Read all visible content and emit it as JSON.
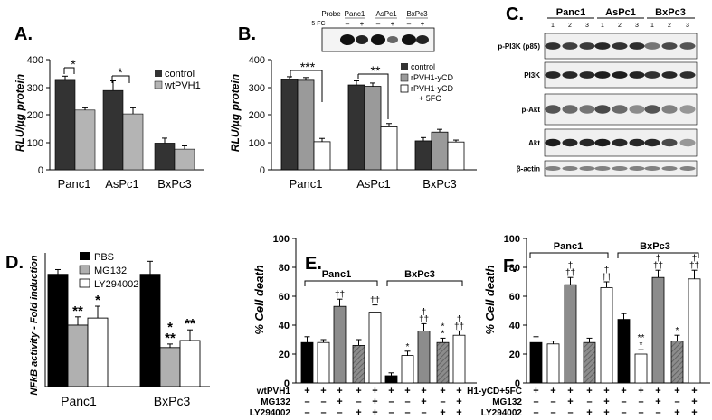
{
  "chart_data": [
    {
      "panel": "A.",
      "type": "bar",
      "ylabel": "RLU/µg protein",
      "ylim": [
        0,
        400
      ],
      "yticks": [
        "0",
        "100",
        "200",
        "300",
        "400"
      ],
      "categories": [
        "Panc1",
        "AsPc1",
        "BxPc3"
      ],
      "series": [
        {
          "name": "control",
          "color": "#333333",
          "values": [
            325,
            288,
            97
          ],
          "err": [
            15,
            35,
            18
          ]
        },
        {
          "name": "wtPVH1",
          "color": "#b4b4b4",
          "values": [
            217,
            203,
            75
          ],
          "err": [
            8,
            22,
            12
          ]
        }
      ],
      "significance": [
        "*",
        "*"
      ]
    },
    {
      "panel": "B.",
      "type": "bar",
      "ylabel": "RLU/µg protein",
      "ylim": [
        0,
        400
      ],
      "yticks": [
        "0",
        "100",
        "200",
        "300",
        "400"
      ],
      "categories": [
        "Panc1",
        "AsPc1",
        "BxPc3"
      ],
      "series": [
        {
          "name": "control",
          "color": "#333333",
          "values": [
            328,
            308,
            105
          ],
          "err": [
            10,
            15,
            12
          ]
        },
        {
          "name": "rPVH1-yCD",
          "color": "#9a9a9a",
          "values": [
            325,
            303,
            137
          ],
          "err": [
            10,
            12,
            10
          ]
        },
        {
          "name": "rPVH1-yCD + 5FC",
          "color": "#ffffff",
          "values": [
            102,
            156,
            101
          ],
          "err": [
            12,
            12,
            7
          ]
        }
      ],
      "significance": [
        "***",
        "**"
      ],
      "blot": {
        "row_label": "5 FC",
        "col_label": "Probe",
        "groups": [
          "Panc1",
          "AsPc1",
          "BxPc3"
        ],
        "lane_marks": [
          "–",
          "+",
          "–",
          "+",
          "–",
          "+"
        ]
      }
    },
    {
      "panel": "C.",
      "type": "table",
      "groups": [
        "Panc1",
        "AsPc1",
        "BxPc3"
      ],
      "lanes": [
        "1",
        "2",
        "3",
        "1",
        "2",
        "3",
        "1",
        "2",
        "3"
      ],
      "rows": [
        "p-PI3K (p85)",
        "PI3K",
        "p-Akt",
        "Akt",
        "β-actin"
      ]
    },
    {
      "panel": "D.",
      "type": "bar",
      "ylabel": "NFkB activity - Fold induction",
      "ylim": [
        0,
        1.2
      ],
      "categories": [
        "Panc1",
        "BxPc3"
      ],
      "series": [
        {
          "name": "PBS",
          "color": "#000000",
          "values": [
            0.95,
            0.95
          ],
          "err": [
            0.04,
            0.11
          ]
        },
        {
          "name": "MG132",
          "color": "#b0b0b0",
          "values": [
            0.52,
            0.33
          ],
          "err": [
            0.07,
            0.03
          ]
        },
        {
          "name": "LY294002",
          "color": "#ffffff",
          "values": [
            0.58,
            0.39
          ],
          "err": [
            0.1,
            0.09
          ]
        }
      ],
      "significance": [
        [
          "",
          "**",
          "*"
        ],
        [
          "",
          "**",
          "**"
        ]
      ],
      "significance_extra": [
        [
          "",
          "",
          ""
        ],
        [
          "",
          "*",
          ""
        ]
      ]
    },
    {
      "panel": "E.",
      "type": "bar",
      "ylabel": "% Cell death",
      "ylim": [
        0,
        100
      ],
      "yticks": [
        "0",
        "20",
        "40",
        "60",
        "80",
        "100"
      ],
      "groups": [
        "Panc1",
        "BxPc3"
      ],
      "values": [
        [
          28,
          28,
          53,
          26,
          49
        ],
        [
          5,
          19,
          36,
          28,
          33
        ]
      ],
      "err": [
        [
          4,
          2,
          5,
          4,
          5
        ],
        [
          2,
          3,
          5,
          3,
          3
        ]
      ],
      "bar_styles": [
        "black",
        "white",
        "gray",
        "hatch",
        "white"
      ],
      "marks": [
        [
          "",
          "",
          "††",
          "",
          "††"
        ],
        [
          "",
          "*",
          "†\n††",
          "*\n*",
          "†\n††"
        ]
      ],
      "rows": [
        {
          "label": "wtPVH1",
          "signs": [
            [
              "+",
              "+",
              "+",
              "+",
              "+"
            ],
            [
              "+",
              "+",
              "+",
              "+",
              "+"
            ]
          ]
        },
        {
          "label": "MG132",
          "signs": [
            [
              "–",
              "–",
              "+",
              "–",
              "+"
            ],
            [
              "–",
              "–",
              "+",
              "–",
              "+"
            ]
          ]
        },
        {
          "label": "LY294002",
          "signs": [
            [
              "–",
              "–",
              "–",
              "+",
              "+"
            ],
            [
              "–",
              "–",
              "–",
              "+",
              "+"
            ]
          ]
        }
      ]
    },
    {
      "panel": "F.",
      "type": "bar",
      "ylabel": "% Cell death",
      "ylim": [
        0,
        100
      ],
      "yticks": [
        "0",
        "20",
        "40",
        "60",
        "80",
        "100"
      ],
      "groups": [
        "Panc1",
        "BxPc3"
      ],
      "values": [
        [
          28,
          27,
          68,
          28,
          66
        ],
        [
          44,
          20,
          73,
          29,
          72
        ]
      ],
      "err": [
        [
          4,
          2,
          5,
          3,
          4
        ],
        [
          4,
          3,
          5,
          4,
          6
        ]
      ],
      "bar_styles": [
        "black",
        "white",
        "gray",
        "hatch",
        "white"
      ],
      "marks": [
        [
          "",
          "",
          "†\n††",
          "",
          "†\n††"
        ],
        [
          "",
          "**\n*",
          "†\n††",
          "*",
          "†\n††"
        ]
      ],
      "rows": [
        {
          "label": "H1-yCD+5FC",
          "signs": [
            [
              "+",
              "+",
              "+",
              "+",
              "+"
            ],
            [
              "+",
              "+",
              "+",
              "+",
              "+"
            ]
          ]
        },
        {
          "label": "MG132",
          "signs": [
            [
              "–",
              "–",
              "+",
              "–",
              "+"
            ],
            [
              "–",
              "–",
              "+",
              "–",
              "+"
            ]
          ]
        },
        {
          "label": "LY294002",
          "signs": [
            [
              "–",
              "–",
              "–",
              "+",
              "+"
            ],
            [
              "–",
              "–",
              "–",
              "+",
              "+"
            ]
          ]
        }
      ]
    }
  ]
}
